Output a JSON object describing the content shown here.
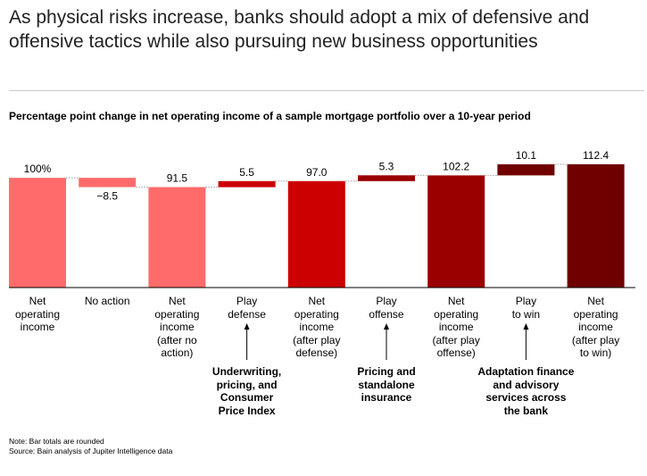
{
  "headline": "As physical risks increase, banks should adopt a mix of defensive and offensive tactics while also pursuing new business opportunities",
  "chart_data": {
    "type": "bar",
    "subtype": "waterfall",
    "title": "Percentage point change in net operating income of a sample mortgage portfolio over a 10-year period",
    "categories": [
      "Net operating income",
      "No action",
      "Net operating income (after no action)",
      "Play defense",
      "Net operating income (after play defense)",
      "Play offense",
      "Net operating income (after play offense)",
      "Play to win",
      "Net operating income (after play to win)"
    ],
    "category_lines": [
      [
        "Net",
        "operating",
        "income"
      ],
      [
        "No action"
      ],
      [
        "Net",
        "operating",
        "income",
        "(after no",
        "action)"
      ],
      [
        "Play",
        "defense"
      ],
      [
        "Net",
        "operating",
        "income",
        "(after play",
        "defense)"
      ],
      [
        "Play",
        "offense"
      ],
      [
        "Net",
        "operating",
        "income",
        "(after play",
        "offense)"
      ],
      [
        "Play",
        "to win"
      ],
      [
        "Net",
        "operating",
        "income",
        "(after play",
        "to win)"
      ]
    ],
    "values": [
      100,
      -8.5,
      91.5,
      5.5,
      97.0,
      5.3,
      102.2,
      10.1,
      112.4
    ],
    "labels": [
      "100%",
      "−8.5",
      "91.5",
      "5.5",
      "97.0",
      "5.3",
      "102.2",
      "10.1",
      "112.4"
    ],
    "kinds": [
      "total",
      "delta",
      "total",
      "delta",
      "total",
      "delta",
      "total",
      "delta",
      "total"
    ],
    "colors": [
      "#ff6b6b",
      "#ff6b6b",
      "#ff6b6b",
      "#cc0000",
      "#cc0000",
      "#9b0000",
      "#9b0000",
      "#700000",
      "#700000"
    ],
    "annotations": [
      {
        "category_index": 3,
        "lines": [
          "Underwriting,",
          "pricing, and",
          "Consumer",
          "Price Index"
        ]
      },
      {
        "category_index": 5,
        "lines": [
          "Pricing and",
          "standalone",
          "insurance"
        ]
      },
      {
        "category_index": 7,
        "lines": [
          "Adaptation finance",
          "and advisory",
          "services across",
          "the bank"
        ]
      }
    ]
  },
  "footnotes": {
    "note": "Note: Bar totals are rounded",
    "source": "Source: Bain analysis of Jupiter Intelligence data"
  }
}
